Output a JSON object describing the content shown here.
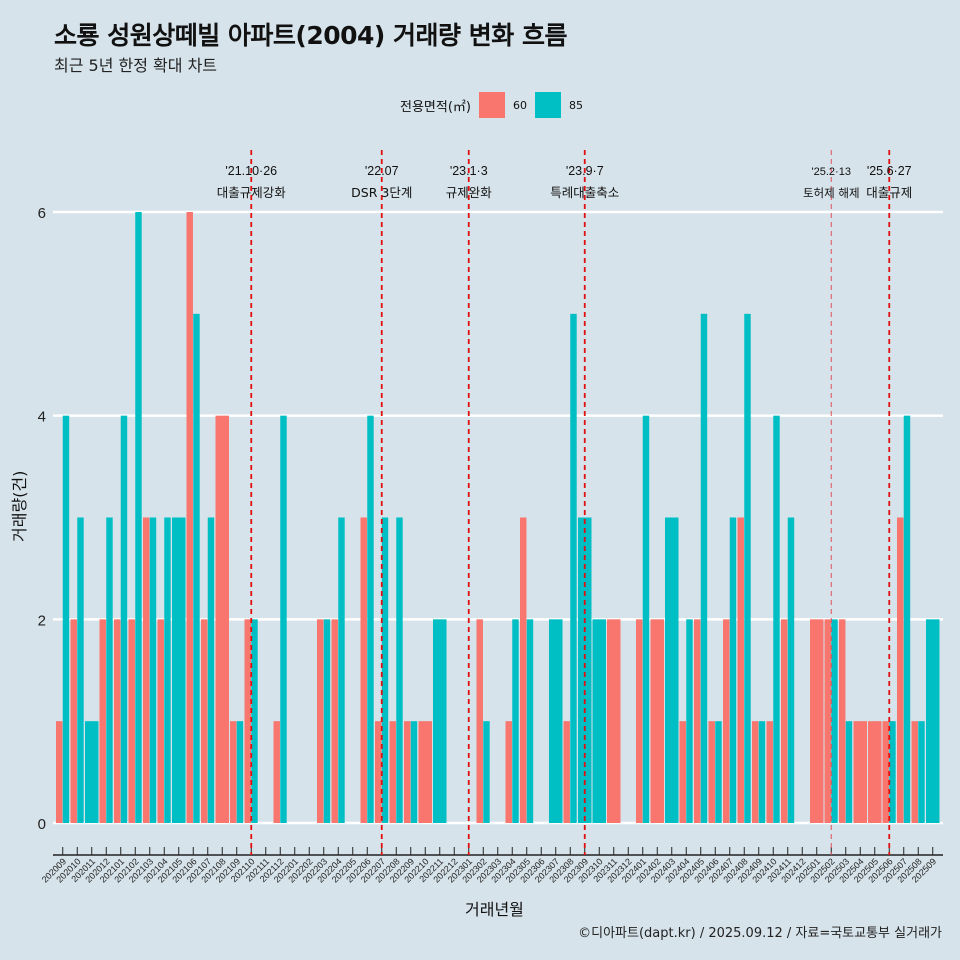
{
  "header": {
    "title": "소룡 성원상떼빌 아파트(2004) 거래량 변화 흐름",
    "subtitle": "최근 5년 한정 확대 차트"
  },
  "legend": {
    "title": "전용면적(㎡)",
    "items": [
      {
        "label": "60",
        "color": "#f8766d"
      },
      {
        "label": "85",
        "color": "#00bfc4"
      }
    ]
  },
  "footer": "©디아파트(dapt.kr) / 2025.09.12 / 자료=국토교통부 실거래가",
  "chart_data": {
    "type": "bar",
    "title": "소룡 성원상떼빌 아파트(2004) 거래량 변화 흐름",
    "subtitle": "최근 5년 한정 확대 차트",
    "xlabel": "거래년월",
    "ylabel": "거래량(건)",
    "ylim": [
      0,
      6
    ],
    "yticks": [
      0,
      2,
      4,
      6
    ],
    "grid": "horizontal",
    "legend_position": "top",
    "categories": [
      "202009",
      "202010",
      "202011",
      "202012",
      "202101",
      "202102",
      "202103",
      "202104",
      "202105",
      "202106",
      "202107",
      "202108",
      "202109",
      "202110",
      "202111",
      "202112",
      "202201",
      "202202",
      "202203",
      "202204",
      "202205",
      "202206",
      "202207",
      "202208",
      "202209",
      "202210",
      "202211",
      "202212",
      "202301",
      "202302",
      "202303",
      "202304",
      "202305",
      "202306",
      "202307",
      "202308",
      "202309",
      "202310",
      "202311",
      "202312",
      "202401",
      "202402",
      "202403",
      "202404",
      "202405",
      "202406",
      "202407",
      "202408",
      "202409",
      "202410",
      "202411",
      "202412",
      "202501",
      "202502",
      "202503",
      "202504",
      "202505",
      "202506",
      "202507",
      "202508",
      "202509"
    ],
    "series": [
      {
        "name": "60",
        "color": "#f8766d",
        "values": [
          1,
          2,
          0,
          2,
          2,
          2,
          3,
          2,
          0,
          6,
          2,
          4,
          1,
          2,
          0,
          1,
          0,
          0,
          2,
          2,
          0,
          3,
          1,
          1,
          1,
          1,
          0,
          0,
          0,
          2,
          0,
          1,
          3,
          0,
          0,
          1,
          0,
          0,
          2,
          0,
          2,
          2,
          0,
          1,
          2,
          1,
          2,
          3,
          1,
          1,
          2,
          0,
          2,
          2,
          2,
          1,
          1,
          1,
          3,
          1,
          0
        ]
      },
      {
        "name": "85",
        "color": "#00bfc4",
        "values": [
          4,
          3,
          1,
          3,
          4,
          6,
          3,
          3,
          3,
          5,
          3,
          0,
          1,
          2,
          0,
          4,
          0,
          0,
          2,
          3,
          0,
          4,
          3,
          3,
          1,
          0,
          2,
          0,
          0,
          1,
          0,
          2,
          2,
          0,
          2,
          5,
          3,
          2,
          0,
          0,
          4,
          0,
          3,
          2,
          5,
          1,
          3,
          5,
          1,
          4,
          3,
          0,
          0,
          2,
          1,
          0,
          0,
          1,
          4,
          1,
          2
        ]
      }
    ],
    "annotations": [
      {
        "category": "202110",
        "date": "'21.10·26",
        "label": "대출규제강화",
        "style": "dashed-bold"
      },
      {
        "category": "202207",
        "date": "'22.07",
        "label": "DSR 3단계",
        "style": "dashed-bold"
      },
      {
        "category": "202301",
        "date": "'23.1·3",
        "label": "규제완화",
        "style": "dashed-bold"
      },
      {
        "category": "202309",
        "date": "'23.9·7",
        "label": "특례대출축소",
        "style": "dashed-bold"
      },
      {
        "category": "202502",
        "date": "'25.2·13",
        "label": "토허제 해제",
        "style": "dashed-thin"
      },
      {
        "category": "202506",
        "date": "'25.6·27",
        "label": "대출규제",
        "style": "dashed-bold"
      }
    ]
  }
}
